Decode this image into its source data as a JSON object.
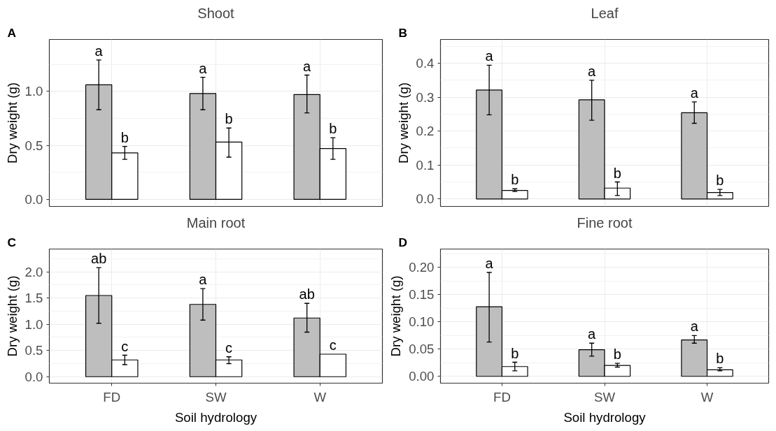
{
  "chart_data": [
    {
      "type": "bar",
      "title": "Shoot",
      "ylabel": "Dry weight (g)",
      "categories": [
        null,
        null,
        null
      ],
      "annotations": [
        "A"
      ],
      "series": [
        {
          "color": "#bebebe",
          "values": [
            1.06,
            0.98,
            0.97
          ],
          "errors": [
            [
              0.83,
              1.29
            ],
            [
              0.83,
              1.13
            ],
            [
              0.8,
              1.15
            ]
          ],
          "value_labels": [
            "a",
            "a",
            "a"
          ]
        },
        {
          "color": "#ffffff",
          "values": [
            0.43,
            0.53,
            0.47
          ],
          "errors": [
            [
              0.37,
              0.49
            ],
            [
              0.39,
              0.66
            ],
            [
              0.37,
              0.57
            ]
          ],
          "value_labels": [
            "b",
            "b",
            "b"
          ]
        }
      ],
      "ylim": [
        -0.066,
        1.48
      ],
      "yticks": [
        {
          "value": 0,
          "label": "0.0"
        },
        {
          "value": 0.5,
          "label": "0.5"
        },
        {
          "value": 1,
          "label": "1.0"
        }
      ],
      "grid": true,
      "tick_labels": "y"
    },
    {
      "type": "bar",
      "title": "Leaf",
      "ylabel": "Dry weight (g)",
      "categories": [
        null,
        null,
        null
      ],
      "annotations": [
        "B"
      ],
      "series": [
        {
          "color": "#bebebe",
          "values": [
            0.321,
            0.292,
            0.254
          ],
          "errors": [
            [
              0.248,
              0.394
            ],
            [
              0.232,
              0.35
            ],
            [
              0.223,
              0.286
            ]
          ],
          "value_labels": [
            "a",
            "a",
            "a"
          ]
        },
        {
          "color": "#ffffff",
          "values": [
            0.025,
            0.032,
            0.019
          ],
          "errors": [
            [
              0.022,
              0.03
            ],
            [
              0.01,
              0.05
            ],
            [
              0.01,
              0.028
            ]
          ],
          "value_labels": [
            "b",
            "b",
            "b"
          ]
        }
      ],
      "ylim": [
        -0.022,
        0.47
      ],
      "yticks": [
        {
          "value": 0,
          "label": "0.0"
        },
        0.1,
        0.2,
        0.3,
        0.4
      ],
      "grid": true,
      "tick_labels": "y"
    },
    {
      "type": "bar",
      "title": "Main root",
      "xlabel": "Soil hydrology",
      "ylabel": "Dry weight (g)",
      "categories": [
        "FD",
        "SW",
        "W"
      ],
      "annotations": [
        "C"
      ],
      "series": [
        {
          "color": "#bebebe",
          "values": [
            1.55,
            1.38,
            1.12
          ],
          "errors": [
            [
              1.02,
              2.08
            ],
            [
              1.08,
              1.68
            ],
            [
              0.85,
              1.4
            ]
          ],
          "value_labels": [
            "ab",
            "a",
            "ab"
          ]
        },
        {
          "color": "#ffffff",
          "values": [
            0.32,
            0.32,
            0.43
          ],
          "errors": [
            [
              0.23,
              0.41
            ],
            [
              0.25,
              0.38
            ],
            null
          ],
          "value_labels": [
            "c",
            "c",
            "c"
          ]
        }
      ],
      "ylim": [
        -0.123,
        2.436
      ],
      "yticks": [
        {
          "value": 0,
          "label": "0.0"
        },
        0.5,
        {
          "value": 1,
          "label": "1.0"
        },
        1.5,
        {
          "value": 2,
          "label": "2.0"
        }
      ],
      "grid": true
    },
    {
      "type": "bar",
      "title": "Fine root",
      "xlabel": "Soil hydrology",
      "ylabel": "Dry weight (g)",
      "categories": [
        "FD",
        "SW",
        "W"
      ],
      "annotations": [
        "D"
      ],
      "series": [
        {
          "color": "#bebebe",
          "values": [
            0.128,
            0.049,
            0.067
          ],
          "errors": [
            [
              0.063,
              0.191
            ],
            [
              0.037,
              0.061
            ],
            [
              0.061,
              0.075
            ]
          ],
          "value_labels": [
            "a",
            "a",
            "a"
          ]
        },
        {
          "color": "#ffffff",
          "values": [
            0.018,
            0.02,
            0.012
          ],
          "errors": [
            [
              0.01,
              0.026
            ],
            [
              0.017,
              0.024
            ],
            [
              0.01,
              0.016
            ]
          ],
          "value_labels": [
            "b",
            "b",
            "b"
          ]
        }
      ],
      "ylim": [
        -0.0125,
        0.234
      ],
      "yticks": [
        {
          "value": 0,
          "label": "0.00"
        },
        0.05,
        {
          "value": 0.1,
          "label": "0.10"
        },
        0.15,
        {
          "value": 0.2,
          "label": "0.20"
        }
      ],
      "grid": true
    }
  ]
}
